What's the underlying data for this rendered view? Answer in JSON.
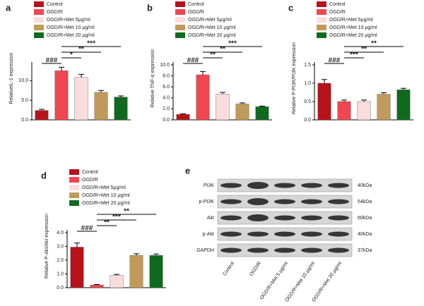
{
  "chart_data": [
    {
      "type": "bar",
      "panel": "a",
      "ylabel": "RelativeIL-1 expression",
      "categories": [
        "Control",
        "OGD/R",
        "OGD/R+Met 5μg/ml",
        "OGD/R+Met 10 μg/ml",
        "OGD/R+Met 20 μg/ml"
      ],
      "colors": [
        "#b8121b",
        "#f0464f",
        "#fbdcdc",
        "#c09a5b",
        "#0f6a1e"
      ],
      "values": [
        2.4,
        12.5,
        10.8,
        7.0,
        5.8
      ],
      "errors": [
        0.3,
        0.9,
        0.8,
        0.5,
        0.3
      ],
      "ylim": [
        0,
        14
      ],
      "yticks": [
        {
          "value": 0,
          "label": "0.0"
        },
        {
          "value": 5,
          "label": "5.0"
        },
        {
          "value": 10,
          "label": "10.0"
        }
      ],
      "annotations": [
        {
          "label": "###",
          "from": "Control",
          "to": "OGD/R"
        },
        {
          "label": "*",
          "from": "OGD/R",
          "to": "OGD/R+Met 5μg/ml"
        },
        {
          "label": "**",
          "from": "OGD/R",
          "to": "OGD/R+Met 10 μg/ml"
        },
        {
          "label": "***",
          "from": "OGD/R",
          "to": "OGD/R+Met 20 μg/ml"
        }
      ]
    },
    {
      "type": "bar",
      "panel": "b",
      "ylabel": "Relative TNF-α expression",
      "categories": [
        "Control",
        "OGD/R",
        "OGD/R+Met 5μg/ml",
        "OGD/R+Met 10 μg/ml",
        "OGD/R+Met 20 μg/ml"
      ],
      "colors": [
        "#b8121b",
        "#f0464f",
        "#fbdcdc",
        "#c09a5b",
        "#0f6a1e"
      ],
      "values": [
        1.0,
        8.2,
        4.7,
        2.9,
        2.4
      ],
      "errors": [
        0.1,
        0.6,
        0.3,
        0.2,
        0.1
      ],
      "ylim": [
        0,
        10
      ],
      "yticks": [
        {
          "value": 0,
          "label": "0.0"
        },
        {
          "value": 2,
          "label": "2.0"
        },
        {
          "value": 4,
          "label": "4.0"
        },
        {
          "value": 6,
          "label": "6.0"
        },
        {
          "value": 8,
          "label": "8.0"
        },
        {
          "value": 10,
          "label": "10.0"
        }
      ],
      "annotations": [
        {
          "label": "###",
          "from": "Control",
          "to": "OGD/R"
        },
        {
          "label": "**",
          "from": "OGD/R",
          "to": "OGD/R+Met 5μg/ml"
        },
        {
          "label": "**",
          "from": "OGD/R",
          "to": "OGD/R+Met 10 μg/ml"
        },
        {
          "label": "***",
          "from": "OGD/R",
          "to": "OGD/R+Met 20 μg/ml"
        }
      ]
    },
    {
      "type": "bar",
      "panel": "c",
      "ylabel": "Relative P-PI3K/PI3K expression",
      "categories": [
        "Control",
        "OGD/R",
        "OGD/R+Met 5μg/ml",
        "OGD/R+Met 10 μg/ml",
        "OGD/R+Met 20 μg/ml"
      ],
      "colors": [
        "#b8121b",
        "#f0464f",
        "#fbdcdc",
        "#c09a5b",
        "#0f6a1e"
      ],
      "values": [
        1.0,
        0.5,
        0.5,
        0.7,
        0.82
      ],
      "errors": [
        0.1,
        0.04,
        0.04,
        0.04,
        0.04
      ],
      "ylim": [
        0,
        1.5
      ],
      "yticks": [
        {
          "value": 0,
          "label": "0.0"
        },
        0.5,
        {
          "value": 1,
          "label": "1.0"
        },
        1.5
      ],
      "annotations": [
        {
          "label": "###",
          "from": "Control",
          "to": "OGD/R"
        },
        {
          "label": "***",
          "from": "OGD/R",
          "to": "OGD/R+Met 5μg/ml"
        },
        {
          "label": "**",
          "from": "OGD/R",
          "to": "OGD/R+Met 10 μg/ml"
        },
        {
          "label": "**",
          "from": "OGD/R",
          "to": "OGD/R+Met 20 μg/ml"
        }
      ]
    },
    {
      "type": "bar",
      "panel": "d",
      "ylabel": "Relative P-Akt/Akt expression",
      "categories": [
        "Control",
        "OGD/R",
        "OGD/R+Met 5μg/ml",
        "OGD/R+Met 10 μg/ml",
        "OGD/R+Met 20 μg/ml"
      ],
      "colors": [
        "#b8121b",
        "#f0464f",
        "#fbdcdc",
        "#c09a5b",
        "#0f6a1e"
      ],
      "values": [
        2.95,
        0.2,
        0.9,
        2.35,
        2.35
      ],
      "errors": [
        0.3,
        0.03,
        0.07,
        0.12,
        0.1
      ],
      "ylim": [
        0,
        4
      ],
      "yticks": [
        {
          "value": 0,
          "label": "0.0"
        },
        {
          "value": 1,
          "label": "1.0"
        },
        {
          "value": 2,
          "label": "2.0"
        },
        {
          "value": 3,
          "label": "3.0"
        },
        {
          "value": 4,
          "label": "4.0"
        }
      ],
      "annotations": [
        {
          "label": "###",
          "from": "Control",
          "to": "OGD/R"
        },
        {
          "label": "**",
          "from": "OGD/R",
          "to": "OGD/R+Met 5μg/ml"
        },
        {
          "label": "***",
          "from": "OGD/R",
          "to": "OGD/R+Met 10 μg/ml"
        },
        {
          "label": "**",
          "from": "OGD/R",
          "to": "OGD/R+Met 20 μg/ml"
        }
      ]
    }
  ],
  "blot": {
    "panel": "e",
    "rows": [
      {
        "protein": "PI3K",
        "size": "40kDa"
      },
      {
        "protein": "p-PI3K",
        "size": "54kDa"
      },
      {
        "protein": "Akt",
        "size": "60kDa"
      },
      {
        "protein": "p-Akt",
        "size": "40kDa"
      },
      {
        "protein": "GAPDH",
        "size": "37kDa"
      }
    ],
    "lanes": [
      "Control",
      "OGD/R",
      "OGD/R+Met 5 μg/ml",
      "OGD/R+Met 10 μg/ml",
      "OGD/R+Met 20 μg/ml"
    ]
  }
}
